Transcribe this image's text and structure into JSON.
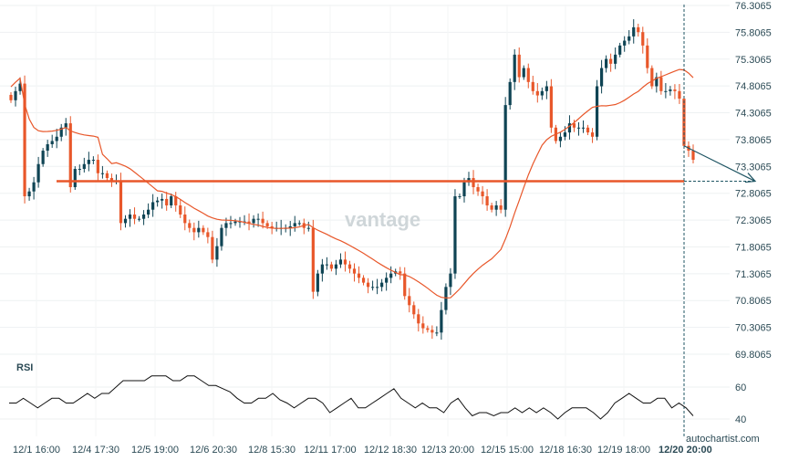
{
  "chart_data": {
    "type": "candlestick",
    "title": "",
    "price_axis": {
      "ticks": [
        "76.3065",
        "75.8065",
        "75.3065",
        "74.8065",
        "74.3065",
        "73.8065",
        "73.3065",
        "72.8065",
        "72.3065",
        "71.8065",
        "71.3065",
        "70.8065",
        "70.3065",
        "69.8065"
      ],
      "range": [
        69.8065,
        76.3065
      ]
    },
    "x_ticks": [
      "12/1 16:00",
      "12/4 17:30",
      "12/5 19:00",
      "12/6 20:30",
      "12/8 15:30",
      "12/11 17:00",
      "12/12 18:30",
      "12/13 20:00",
      "12/15 15:00",
      "12/18 16:30",
      "12/19 18:00"
    ],
    "x_tick_current": {
      "date": "12/20",
      "time": "20:00"
    },
    "closes": [
      74.54,
      74.71,
      74.85,
      72.75,
      72.84,
      73.01,
      73.35,
      73.6,
      73.72,
      73.78,
      73.86,
      74.03,
      74.11,
      72.92,
      73.26,
      73.26,
      73.35,
      73.43,
      73.43,
      73.18,
      73.18,
      73.09,
      73.04,
      73.04,
      72.25,
      72.33,
      72.41,
      72.33,
      72.33,
      72.41,
      72.5,
      72.64,
      72.67,
      72.7,
      72.58,
      72.75,
      72.58,
      72.41,
      72.25,
      72.16,
      72.08,
      72.16,
      72.08,
      71.99,
      71.57,
      71.82,
      72.16,
      72.25,
      72.25,
      72.28,
      72.28,
      72.28,
      72.25,
      72.33,
      72.33,
      72.25,
      72.19,
      72.16,
      72.16,
      72.16,
      72.16,
      72.19,
      72.25,
      72.25,
      72.16,
      72.16,
      70.97,
      71.31,
      71.48,
      71.48,
      71.4,
      71.48,
      71.57,
      71.48,
      71.4,
      71.31,
      71.23,
      71.14,
      71.06,
      71.06,
      71.06,
      71.14,
      71.23,
      71.31,
      71.35,
      71.31,
      70.89,
      70.72,
      70.55,
      70.38,
      70.29,
      70.26,
      70.21,
      70.21,
      70.63,
      71.06,
      71.31,
      72.75,
      72.75,
      73.01,
      73.09,
      72.92,
      72.84,
      72.75,
      72.58,
      72.5,
      72.58,
      72.5,
      74.45,
      74.88,
      75.39,
      74.97,
      75.14,
      74.88,
      74.71,
      74.63,
      74.71,
      74.8,
      74.03,
      73.78,
      73.86,
      73.94,
      74.11,
      74.03,
      74.03,
      74.03,
      73.94,
      73.86,
      74.8,
      75.14,
      75.31,
      75.22,
      75.39,
      75.56,
      75.65,
      75.73,
      75.9,
      75.81,
      75.56,
      75.14,
      74.8,
      74.97,
      74.71,
      74.71,
      74.74,
      74.71,
      74.57,
      73.69,
      73.6,
      73.43
    ],
    "moving_average_period": 20,
    "support_level": 73.03,
    "forecast_target": 73.03,
    "rsi": {
      "label": "RSI",
      "ticks": [
        "60",
        "40"
      ],
      "range": [
        20,
        80
      ],
      "values": [
        50,
        50,
        53,
        50,
        47,
        50,
        53,
        53,
        50,
        50,
        53,
        56,
        53,
        56,
        56,
        60,
        64,
        64,
        64,
        64,
        67,
        67,
        67,
        64,
        64,
        67,
        67,
        64,
        61,
        61,
        59,
        57,
        53,
        50,
        50,
        53,
        53,
        56,
        52,
        50,
        47,
        50,
        53,
        53,
        50,
        44,
        47,
        50,
        53,
        47,
        47,
        50,
        53,
        56,
        59,
        53,
        50,
        47,
        50,
        47,
        47,
        44,
        50,
        53,
        47,
        42,
        44,
        44,
        42,
        44,
        44,
        47,
        44,
        47,
        44,
        47,
        44,
        40,
        44,
        47,
        47,
        47,
        44,
        40,
        44,
        50,
        53,
        56,
        53,
        50,
        50,
        53,
        53,
        47,
        50,
        47,
        42
      ]
    },
    "colors": {
      "up": "#0f4454",
      "down": "#e8572a",
      "ma": "#e8572a",
      "level": "#e8572a",
      "forecast": "#1f5563"
    }
  },
  "watermark": "vantage",
  "credit": "autochartist.com"
}
